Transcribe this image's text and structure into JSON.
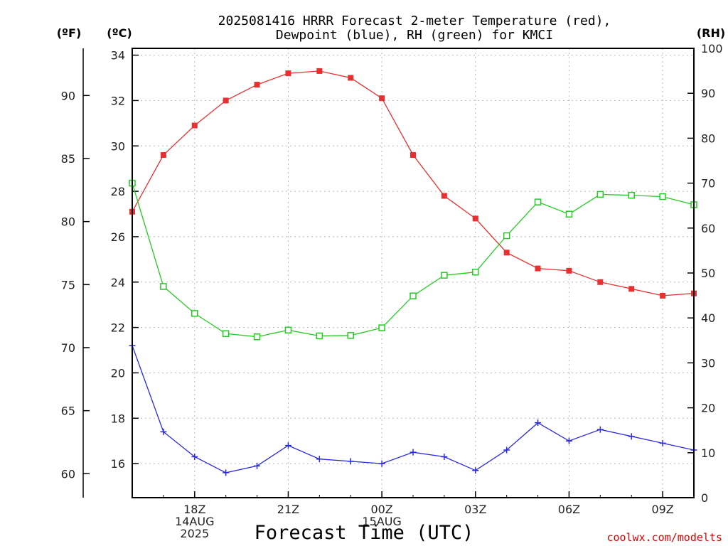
{
  "chart_data": {
    "type": "line",
    "title": [
      "2025081416 HRRR Forecast 2-meter Temperature (red),",
      "Dewpoint (blue), RH (green) for KMCI"
    ],
    "xlabel": "Forecast Time (UTC)",
    "credit": "coolwx.com/modelts",
    "units": {
      "f": "(ºF)",
      "c": "(ºC)",
      "rh": "(RH)"
    },
    "x": [
      "16Z",
      "17Z",
      "18Z",
      "19Z",
      "20Z",
      "21Z",
      "22Z",
      "23Z",
      "00Z",
      "01Z",
      "02Z",
      "03Z",
      "04Z",
      "05Z",
      "06Z",
      "07Z",
      "08Z",
      "09Z",
      "10Z"
    ],
    "x_ticks": [
      {
        "hour": 2,
        "lines": [
          "18Z",
          "14AUG",
          "2025"
        ]
      },
      {
        "hour": 5,
        "lines": [
          "21Z"
        ]
      },
      {
        "hour": 8,
        "lines": [
          "00Z",
          "15AUG"
        ]
      },
      {
        "hour": 11,
        "lines": [
          "03Z"
        ]
      },
      {
        "hour": 14,
        "lines": [
          "06Z"
        ]
      },
      {
        "hour": 17,
        "lines": [
          "09Z"
        ]
      }
    ],
    "axes": {
      "celsius": {
        "range": [
          14.5,
          34.3
        ],
        "ticks": [
          16,
          18,
          20,
          22,
          24,
          26,
          28,
          30,
          32,
          34
        ]
      },
      "fahrenheit": {
        "ticks": [
          60,
          65,
          70,
          75,
          80,
          85,
          90
        ]
      },
      "rh": {
        "range": [
          0,
          100
        ],
        "ticks": [
          0,
          10,
          20,
          30,
          40,
          50,
          60,
          70,
          80,
          90,
          100
        ]
      }
    },
    "grid": true,
    "series": [
      {
        "name": "Temperature",
        "color": "#e83030",
        "axis": "celsius",
        "marker": "filled-square",
        "values": [
          27.1,
          29.6,
          30.9,
          32.0,
          32.7,
          33.2,
          33.3,
          33.0,
          32.1,
          29.6,
          27.8,
          26.8,
          25.3,
          24.6,
          24.5,
          24.0,
          23.7,
          23.4,
          23.5
        ]
      },
      {
        "name": "Dewpoint",
        "color": "#2a2ae0",
        "axis": "celsius",
        "marker": "plus",
        "values": [
          21.2,
          17.4,
          16.3,
          15.6,
          15.9,
          16.8,
          16.2,
          16.1,
          16.0,
          16.5,
          16.3,
          15.7,
          16.6,
          17.8,
          17.0,
          17.5,
          17.2,
          16.9,
          16.6
        ]
      },
      {
        "name": "RH",
        "color": "#22cc22",
        "axis": "rh",
        "marker": "open-square",
        "values": [
          70,
          47,
          41,
          36.5,
          35.8,
          37.3,
          36,
          36.1,
          37.8,
          44.9,
          49.5,
          50.2,
          58.3,
          65.8,
          63.1,
          67.5,
          67.3,
          67,
          65.2
        ]
      }
    ]
  }
}
